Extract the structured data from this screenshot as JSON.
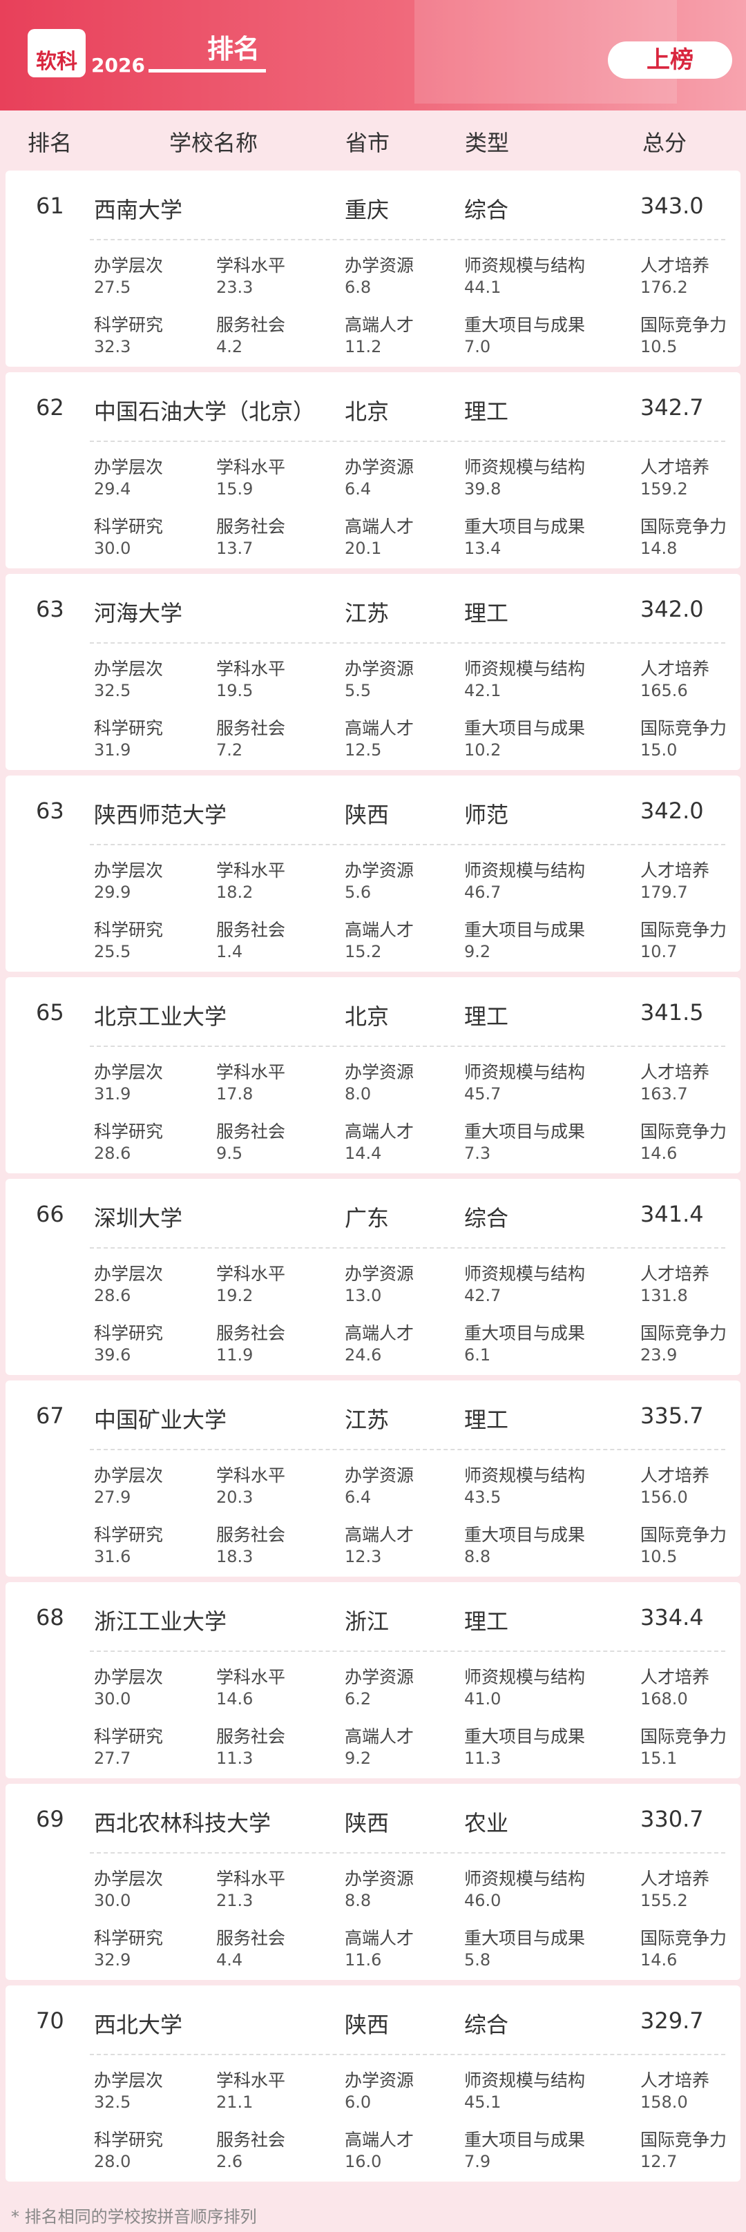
{
  "header": {
    "brand": "软科",
    "year": "2026",
    "title": "排名",
    "badge": "上榜"
  },
  "columns": [
    "排名",
    "学校名称",
    "省市",
    "类型",
    "总分"
  ],
  "metric_labels": [
    "办学层次",
    "学科水平",
    "办学资源",
    "师资规模与结构",
    "人才培养",
    "科学研究",
    "服务社会",
    "高端人才",
    "重大项目与成果",
    "国际竞争力"
  ],
  "rows": [
    {
      "rank": "61",
      "name": "西南大学",
      "province": "重庆",
      "type": "综合",
      "total": "343.0",
      "metrics": [
        "27.5",
        "23.3",
        "6.8",
        "44.1",
        "176.2",
        "32.3",
        "4.2",
        "11.2",
        "7.0",
        "10.5"
      ]
    },
    {
      "rank": "62",
      "name": "中国石油大学（北京）",
      "province": "北京",
      "type": "理工",
      "total": "342.7",
      "metrics": [
        "29.4",
        "15.9",
        "6.4",
        "39.8",
        "159.2",
        "30.0",
        "13.7",
        "20.1",
        "13.4",
        "14.8"
      ]
    },
    {
      "rank": "63",
      "name": "河海大学",
      "province": "江苏",
      "type": "理工",
      "total": "342.0",
      "metrics": [
        "32.5",
        "19.5",
        "5.5",
        "42.1",
        "165.6",
        "31.9",
        "7.2",
        "12.5",
        "10.2",
        "15.0"
      ]
    },
    {
      "rank": "63",
      "name": "陕西师范大学",
      "province": "陕西",
      "type": "师范",
      "total": "342.0",
      "metrics": [
        "29.9",
        "18.2",
        "5.6",
        "46.7",
        "179.7",
        "25.5",
        "1.4",
        "15.2",
        "9.2",
        "10.7"
      ]
    },
    {
      "rank": "65",
      "name": "北京工业大学",
      "province": "北京",
      "type": "理工",
      "total": "341.5",
      "metrics": [
        "31.9",
        "17.8",
        "8.0",
        "45.7",
        "163.7",
        "28.6",
        "9.5",
        "14.4",
        "7.3",
        "14.6"
      ]
    },
    {
      "rank": "66",
      "name": "深圳大学",
      "province": "广东",
      "type": "综合",
      "total": "341.4",
      "metrics": [
        "28.6",
        "19.2",
        "13.0",
        "42.7",
        "131.8",
        "39.6",
        "11.9",
        "24.6",
        "6.1",
        "23.9"
      ]
    },
    {
      "rank": "67",
      "name": "中国矿业大学",
      "province": "江苏",
      "type": "理工",
      "total": "335.7",
      "metrics": [
        "27.9",
        "20.3",
        "6.4",
        "43.5",
        "156.0",
        "31.6",
        "18.3",
        "12.3",
        "8.8",
        "10.5"
      ]
    },
    {
      "rank": "68",
      "name": "浙江工业大学",
      "province": "浙江",
      "type": "理工",
      "total": "334.4",
      "metrics": [
        "30.0",
        "14.6",
        "6.2",
        "41.0",
        "168.0",
        "27.7",
        "11.3",
        "9.2",
        "11.3",
        "15.1"
      ]
    },
    {
      "rank": "69",
      "name": "西北农林科技大学",
      "province": "陕西",
      "type": "农业",
      "total": "330.7",
      "metrics": [
        "30.0",
        "21.3",
        "8.8",
        "46.0",
        "155.2",
        "32.9",
        "4.4",
        "11.6",
        "5.8",
        "14.6"
      ]
    },
    {
      "rank": "70",
      "name": "西北大学",
      "province": "陕西",
      "type": "综合",
      "total": "329.7",
      "metrics": [
        "32.5",
        "21.1",
        "6.0",
        "45.1",
        "158.0",
        "28.0",
        "2.6",
        "16.0",
        "7.9",
        "12.7"
      ]
    }
  ],
  "footnote": "* 排名相同的学校按拼音顺序排列"
}
